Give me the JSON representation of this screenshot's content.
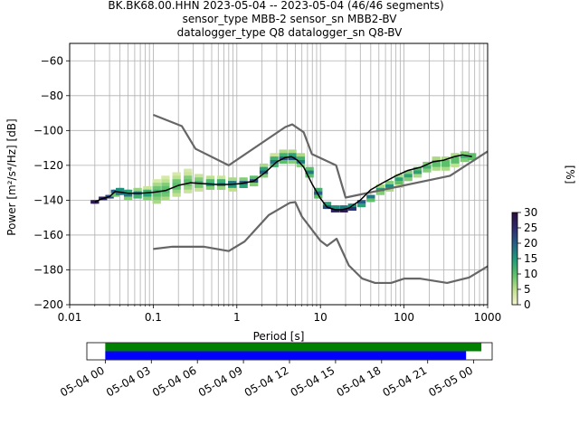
{
  "chart_data": {
    "type": "heatmap",
    "title_lines": [
      "BK.BK68.00.HHN   2023-05-04 -- 2023-05-04  (46/46 segments)",
      "sensor_type MBB-2 sensor_sn MBB2-BV",
      "datalogger_type Q8 datalogger_sn Q8-BV"
    ],
    "xlabel": "Period [s]",
    "ylabel": "Power [m²/s⁴/Hz] [dB]",
    "xscale": "log",
    "xlim": [
      0.01,
      1000
    ],
    "ylim": [
      -200,
      -50
    ],
    "x_ticks": [
      0.01,
      0.1,
      1,
      10,
      100,
      1000
    ],
    "x_tick_labels": [
      "0.01",
      "0.1",
      "1",
      "10",
      "100",
      "1000"
    ],
    "y_ticks": [
      -200,
      -180,
      -160,
      -140,
      -120,
      -100,
      -80,
      -60
    ],
    "y_tick_labels": [
      "−200",
      "−180",
      "−160",
      "−140",
      "−120",
      "−100",
      "−80",
      "−60"
    ],
    "grid": true,
    "colorbar": {
      "label": "[%]",
      "range": [
        0,
        30
      ],
      "ticks": [
        0,
        5,
        10,
        15,
        20,
        25,
        30
      ],
      "tick_labels": [
        "0",
        "5",
        "10",
        "15",
        "20",
        "25",
        "30"
      ]
    },
    "series": [
      {
        "role": "high_noise_model",
        "color": "#666666",
        "x": [
          0.1,
          0.22,
          0.32,
          0.8,
          3.8,
          4.6,
          6.3,
          7.9,
          15.4,
          20,
          354.8,
          1000
        ],
        "y": [
          -91,
          -97.5,
          -110.5,
          -120,
          -98,
          -96.5,
          -101,
          -113.5,
          -120,
          -138.5,
          -126,
          -112
        ]
      },
      {
        "role": "low_noise_model",
        "color": "#666666",
        "x": [
          0.1,
          0.17,
          0.4,
          0.8,
          1.24,
          2.4,
          4.3,
          5.0,
          6.0,
          10,
          12,
          15.6,
          21.9,
          31.6,
          45,
          70,
          101,
          154,
          328,
          600,
          1000
        ],
        "y": [
          -168,
          -166.7,
          -166.7,
          -169.2,
          -163.7,
          -148.6,
          -141.5,
          -141.1,
          -149.4,
          -163.3,
          -166.2,
          -162.1,
          -177.5,
          -185,
          -187.5,
          -187.5,
          -185,
          -185,
          -187.5,
          -184.4,
          -178
        ]
      },
      {
        "role": "mean_psd",
        "color": "#000000",
        "x": [
          0.02,
          0.025,
          0.03,
          0.035,
          0.05,
          0.07,
          0.1,
          0.14,
          0.2,
          0.28,
          0.4,
          0.56,
          0.8,
          1.1,
          1.6,
          2.2,
          3.0,
          3.8,
          4.5,
          5.3,
          6.3,
          8.0,
          10,
          12,
          15,
          18,
          22,
          30,
          40,
          56,
          80,
          110,
          160,
          220,
          300,
          400,
          500,
          650
        ],
        "y": [
          -141,
          -139,
          -138,
          -135,
          -136,
          -136,
          -135.5,
          -134.5,
          -131.5,
          -130,
          -130.5,
          -131,
          -131,
          -130.5,
          -129,
          -124,
          -118,
          -115.5,
          -115,
          -117,
          -121,
          -131,
          -139,
          -144,
          -145.5,
          -145.5,
          -144.5,
          -140,
          -134,
          -130,
          -126,
          -123,
          -121,
          -118,
          -117,
          -115,
          -114,
          -115
        ]
      }
    ],
    "density": {
      "color_scale": [
        "#f7f6d0",
        "#bfe08e",
        "#5cbf6a",
        "#1f9a7a",
        "#255f86",
        "#2e2a6e",
        "#2a0f3e"
      ],
      "cells": [
        {
          "x": 0.02,
          "y": -141,
          "v": 28
        },
        {
          "x": 0.025,
          "y": -139,
          "v": 26
        },
        {
          "x": 0.03,
          "y": -138,
          "v": 22
        },
        {
          "x": 0.035,
          "y": -135,
          "v": 20
        },
        {
          "x": 0.035,
          "y": -137,
          "v": 9
        },
        {
          "x": 0.04,
          "y": -134,
          "v": 16
        },
        {
          "x": 0.04,
          "y": -136,
          "v": 18
        },
        {
          "x": 0.05,
          "y": -135,
          "v": 14
        },
        {
          "x": 0.05,
          "y": -137,
          "v": 18
        },
        {
          "x": 0.05,
          "y": -139,
          "v": 8
        },
        {
          "x": 0.065,
          "y": -134,
          "v": 7
        },
        {
          "x": 0.065,
          "y": -136,
          "v": 18
        },
        {
          "x": 0.065,
          "y": -138,
          "v": 12
        },
        {
          "x": 0.085,
          "y": -133,
          "v": 4
        },
        {
          "x": 0.085,
          "y": -135,
          "v": 12
        },
        {
          "x": 0.085,
          "y": -137,
          "v": 14
        },
        {
          "x": 0.085,
          "y": -139,
          "v": 8
        },
        {
          "x": 0.11,
          "y": -129,
          "v": 3
        },
        {
          "x": 0.11,
          "y": -131,
          "v": 6
        },
        {
          "x": 0.11,
          "y": -133,
          "v": 9
        },
        {
          "x": 0.11,
          "y": -135,
          "v": 12
        },
        {
          "x": 0.11,
          "y": -137,
          "v": 10
        },
        {
          "x": 0.11,
          "y": -139,
          "v": 8
        },
        {
          "x": 0.11,
          "y": -141,
          "v": 6
        },
        {
          "x": 0.14,
          "y": -127,
          "v": 3
        },
        {
          "x": 0.14,
          "y": -129,
          "v": 5
        },
        {
          "x": 0.14,
          "y": -131,
          "v": 8
        },
        {
          "x": 0.14,
          "y": -133,
          "v": 10
        },
        {
          "x": 0.14,
          "y": -135,
          "v": 11
        },
        {
          "x": 0.14,
          "y": -137,
          "v": 9
        },
        {
          "x": 0.14,
          "y": -139,
          "v": 6
        },
        {
          "x": 0.19,
          "y": -125,
          "v": 3
        },
        {
          "x": 0.19,
          "y": -127,
          "v": 5
        },
        {
          "x": 0.19,
          "y": -129,
          "v": 9
        },
        {
          "x": 0.19,
          "y": -131,
          "v": 10
        },
        {
          "x": 0.19,
          "y": -133,
          "v": 10
        },
        {
          "x": 0.19,
          "y": -135,
          "v": 7
        },
        {
          "x": 0.19,
          "y": -137,
          "v": 5
        },
        {
          "x": 0.26,
          "y": -123,
          "v": 3
        },
        {
          "x": 0.26,
          "y": -125,
          "v": 4
        },
        {
          "x": 0.26,
          "y": -127,
          "v": 8
        },
        {
          "x": 0.26,
          "y": -129,
          "v": 10
        },
        {
          "x": 0.26,
          "y": -131,
          "v": 9
        },
        {
          "x": 0.26,
          "y": -133,
          "v": 7
        },
        {
          "x": 0.26,
          "y": -135,
          "v": 4
        },
        {
          "x": 0.35,
          "y": -126,
          "v": 4
        },
        {
          "x": 0.35,
          "y": -128,
          "v": 8
        },
        {
          "x": 0.35,
          "y": -130,
          "v": 12
        },
        {
          "x": 0.35,
          "y": -132,
          "v": 9
        },
        {
          "x": 0.35,
          "y": -134,
          "v": 4
        },
        {
          "x": 0.48,
          "y": -127,
          "v": 5
        },
        {
          "x": 0.48,
          "y": -129,
          "v": 11
        },
        {
          "x": 0.48,
          "y": -131,
          "v": 15
        },
        {
          "x": 0.48,
          "y": -133,
          "v": 8
        },
        {
          "x": 0.65,
          "y": -127,
          "v": 4
        },
        {
          "x": 0.65,
          "y": -129,
          "v": 12
        },
        {
          "x": 0.65,
          "y": -131,
          "v": 16
        },
        {
          "x": 0.65,
          "y": -133,
          "v": 7
        },
        {
          "x": 0.88,
          "y": -128,
          "v": 6
        },
        {
          "x": 0.88,
          "y": -130,
          "v": 18
        },
        {
          "x": 0.88,
          "y": -132,
          "v": 15
        },
        {
          "x": 0.88,
          "y": -134,
          "v": 5
        },
        {
          "x": 1.2,
          "y": -128,
          "v": 8
        },
        {
          "x": 1.2,
          "y": -130,
          "v": 20
        },
        {
          "x": 1.2,
          "y": -132,
          "v": 14
        },
        {
          "x": 1.6,
          "y": -127,
          "v": 10
        },
        {
          "x": 1.6,
          "y": -129,
          "v": 22
        },
        {
          "x": 1.6,
          "y": -131,
          "v": 8
        },
        {
          "x": 2.1,
          "y": -120,
          "v": 6
        },
        {
          "x": 2.1,
          "y": -122,
          "v": 14
        },
        {
          "x": 2.1,
          "y": -124,
          "v": 20
        },
        {
          "x": 2.1,
          "y": -126,
          "v": 8
        },
        {
          "x": 2.8,
          "y": -114,
          "v": 4
        },
        {
          "x": 2.8,
          "y": -116,
          "v": 12
        },
        {
          "x": 2.8,
          "y": -118,
          "v": 18
        },
        {
          "x": 2.8,
          "y": -120,
          "v": 12
        },
        {
          "x": 3.6,
          "y": -112,
          "v": 6
        },
        {
          "x": 3.6,
          "y": -114,
          "v": 12
        },
        {
          "x": 3.6,
          "y": -116,
          "v": 20
        },
        {
          "x": 3.6,
          "y": -118,
          "v": 10
        },
        {
          "x": 4.6,
          "y": -112,
          "v": 6
        },
        {
          "x": 4.6,
          "y": -114,
          "v": 14
        },
        {
          "x": 4.6,
          "y": -116,
          "v": 20
        },
        {
          "x": 4.6,
          "y": -118,
          "v": 8
        },
        {
          "x": 5.8,
          "y": -114,
          "v": 6
        },
        {
          "x": 5.8,
          "y": -116,
          "v": 12
        },
        {
          "x": 5.8,
          "y": -118,
          "v": 18
        },
        {
          "x": 5.8,
          "y": -120,
          "v": 8
        },
        {
          "x": 7.4,
          "y": -122,
          "v": 10
        },
        {
          "x": 7.4,
          "y": -124,
          "v": 18
        },
        {
          "x": 7.4,
          "y": -126,
          "v": 10
        },
        {
          "x": 9.4,
          "y": -134,
          "v": 12
        },
        {
          "x": 9.4,
          "y": -136,
          "v": 20
        },
        {
          "x": 9.4,
          "y": -138,
          "v": 10
        },
        {
          "x": 12,
          "y": -142,
          "v": 14
        },
        {
          "x": 12,
          "y": -144,
          "v": 22
        },
        {
          "x": 15,
          "y": -144,
          "v": 16
        },
        {
          "x": 15,
          "y": -146,
          "v": 26
        },
        {
          "x": 19,
          "y": -144,
          "v": 18
        },
        {
          "x": 19,
          "y": -146,
          "v": 28
        },
        {
          "x": 24,
          "y": -143,
          "v": 16
        },
        {
          "x": 24,
          "y": -145,
          "v": 24
        },
        {
          "x": 31,
          "y": -141,
          "v": 20
        },
        {
          "x": 31,
          "y": -143,
          "v": 14
        },
        {
          "x": 40,
          "y": -138,
          "v": 18
        },
        {
          "x": 40,
          "y": -140,
          "v": 10
        },
        {
          "x": 52,
          "y": -132,
          "v": 6
        },
        {
          "x": 52,
          "y": -134,
          "v": 14
        },
        {
          "x": 52,
          "y": -136,
          "v": 8
        },
        {
          "x": 67,
          "y": -130,
          "v": 8
        },
        {
          "x": 67,
          "y": -132,
          "v": 16
        },
        {
          "x": 67,
          "y": -134,
          "v": 6
        },
        {
          "x": 87,
          "y": -126,
          "v": 6
        },
        {
          "x": 87,
          "y": -128,
          "v": 14
        },
        {
          "x": 87,
          "y": -130,
          "v": 10
        },
        {
          "x": 87,
          "y": -132,
          "v": 4
        },
        {
          "x": 112,
          "y": -124,
          "v": 8
        },
        {
          "x": 112,
          "y": -126,
          "v": 14
        },
        {
          "x": 112,
          "y": -128,
          "v": 8
        },
        {
          "x": 145,
          "y": -122,
          "v": 10
        },
        {
          "x": 145,
          "y": -124,
          "v": 14
        },
        {
          "x": 145,
          "y": -126,
          "v": 6
        },
        {
          "x": 188,
          "y": -119,
          "v": 8
        },
        {
          "x": 188,
          "y": -121,
          "v": 12
        },
        {
          "x": 188,
          "y": -123,
          "v": 8
        },
        {
          "x": 243,
          "y": -116,
          "v": 6
        },
        {
          "x": 243,
          "y": -118,
          "v": 10
        },
        {
          "x": 243,
          "y": -120,
          "v": 10
        },
        {
          "x": 243,
          "y": -122,
          "v": 6
        },
        {
          "x": 315,
          "y": -116,
          "v": 6
        },
        {
          "x": 315,
          "y": -118,
          "v": 10
        },
        {
          "x": 315,
          "y": -120,
          "v": 10
        },
        {
          "x": 315,
          "y": -122,
          "v": 6
        },
        {
          "x": 408,
          "y": -114,
          "v": 6
        },
        {
          "x": 408,
          "y": -116,
          "v": 10
        },
        {
          "x": 408,
          "y": -118,
          "v": 10
        },
        {
          "x": 408,
          "y": -120,
          "v": 5
        },
        {
          "x": 528,
          "y": -113,
          "v": 8
        },
        {
          "x": 528,
          "y": -115,
          "v": 12
        },
        {
          "x": 528,
          "y": -117,
          "v": 8
        },
        {
          "x": 650,
          "y": -114,
          "v": 10
        },
        {
          "x": 650,
          "y": -116,
          "v": 10
        }
      ]
    },
    "coverage": {
      "xlabel": "",
      "ticks": [
        "05-04 00",
        "05-04 03",
        "05-04 06",
        "05-04 09",
        "05-04 12",
        "05-04 15",
        "05-04 18",
        "05-04 21",
        "05-05 00"
      ],
      "tick_hours": [
        0,
        3,
        6,
        9,
        12,
        15,
        18,
        21,
        24
      ],
      "range_hours": [
        -1.2,
        25.2
      ],
      "bars": [
        {
          "color": "#008000",
          "start_hours": 0,
          "end_hours": 24.5
        },
        {
          "color": "#0000ff",
          "start_hours": 0,
          "end_hours": 23.5
        }
      ]
    }
  }
}
